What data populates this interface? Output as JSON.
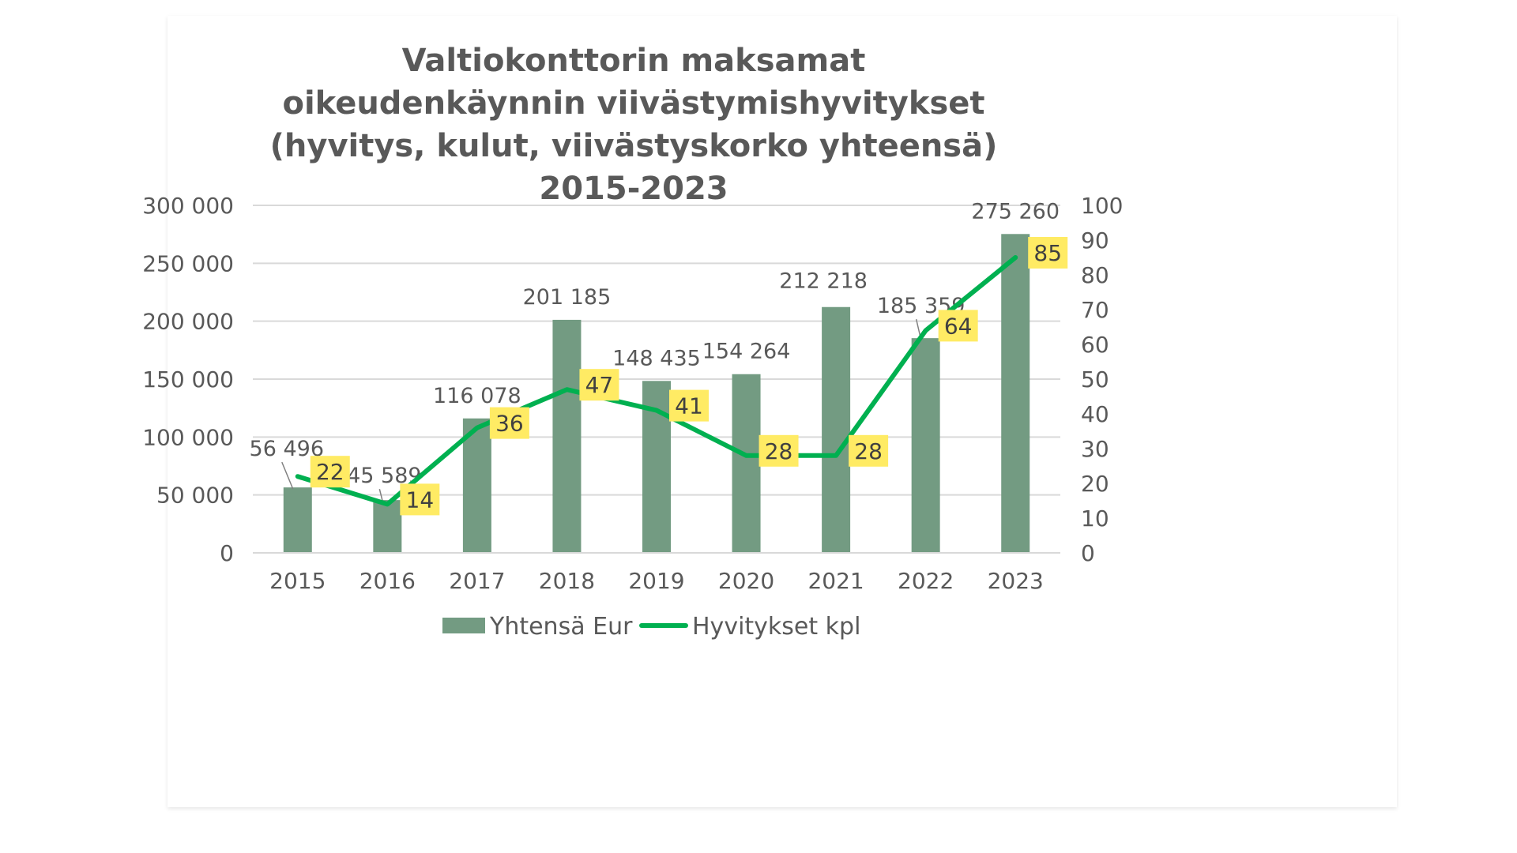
{
  "colors": {
    "bar": "#739b82",
    "line": "#00b050",
    "label_box": "#ffeb64",
    "grid": "#d9d9d9",
    "text": "#595959"
  },
  "chart_data": {
    "type": "bar",
    "title_lines": [
      "Valtiokonttorin maksamat",
      "oikeudenkäynnin viivästymishyvitykset",
      "(hyvitys, kulut, viivästyskorko yhteensä)",
      "2015-2023"
    ],
    "categories": [
      "2015",
      "2016",
      "2017",
      "2018",
      "2019",
      "2020",
      "2021",
      "2022",
      "2023"
    ],
    "series": [
      {
        "name": "Yhtensä Eur",
        "type": "bar",
        "axis": "left",
        "values": [
          56496,
          45589,
          116078,
          201185,
          148435,
          154264,
          212218,
          185359,
          275260
        ],
        "labels": [
          "56 496",
          "45 589",
          "116 078",
          "201 185",
          "148 435",
          "154 264",
          "212 218",
          "185 359",
          "275 260"
        ]
      },
      {
        "name": "Hyvitykset kpl",
        "type": "line",
        "axis": "right",
        "values": [
          22,
          14,
          36,
          47,
          41,
          28,
          28,
          64,
          85
        ]
      }
    ],
    "y_left": {
      "range": [
        0,
        300000
      ],
      "ticks": [
        0,
        50000,
        100000,
        150000,
        200000,
        250000,
        300000
      ],
      "tick_labels": [
        "0",
        "50 000",
        "100 000",
        "150 000",
        "200 000",
        "250 000",
        "300 000"
      ]
    },
    "y_right": {
      "range": [
        0,
        100
      ],
      "ticks": [
        0,
        10,
        20,
        30,
        40,
        50,
        60,
        70,
        80,
        90,
        100
      ],
      "tick_labels": [
        "0",
        "10",
        "20",
        "30",
        "40",
        "50",
        "60",
        "70",
        "80",
        "90",
        "100"
      ]
    },
    "grid": true,
    "legend_position": "bottom"
  }
}
